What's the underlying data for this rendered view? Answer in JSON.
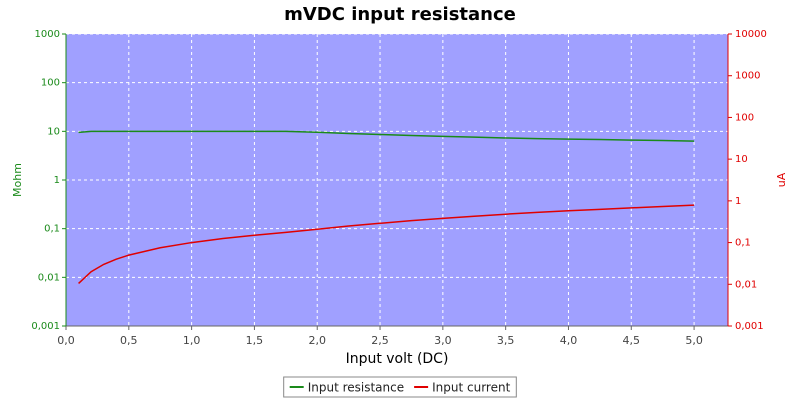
{
  "chart_data": {
    "type": "line",
    "title": "mVDC input resistance",
    "x_label": "Input volt (DC)",
    "y_label": "Mohm",
    "y2_label": "uA",
    "x": [
      0.1,
      0.2,
      0.3,
      0.4,
      0.5,
      0.75,
      1.0,
      1.25,
      1.5,
      1.75,
      2.0,
      2.25,
      2.5,
      2.75,
      3.0,
      3.25,
      3.5,
      3.75,
      4.0,
      4.25,
      4.5,
      4.75,
      5.0
    ],
    "series": [
      {
        "name": "Input resistance",
        "color": "#1a8a1a",
        "axis": "y",
        "values": [
          9.5,
          10,
          10,
          10,
          10,
          10,
          10,
          10,
          10,
          10,
          9.6,
          9.0,
          8.6,
          8.2,
          7.9,
          7.6,
          7.3,
          7.1,
          6.9,
          6.8,
          6.6,
          6.5,
          6.3
        ]
      },
      {
        "name": "Input current",
        "color": "#e00000",
        "axis": "y2",
        "values": [
          0.0105,
          0.02,
          0.03,
          0.04,
          0.05,
          0.075,
          0.1,
          0.125,
          0.15,
          0.175,
          0.208,
          0.25,
          0.29,
          0.335,
          0.38,
          0.428,
          0.479,
          0.528,
          0.58,
          0.625,
          0.68,
          0.73,
          0.79
        ]
      }
    ],
    "xlim": [
      0,
      5.27
    ],
    "xticks": [
      {
        "value": 0,
        "label": "0,0"
      },
      {
        "value": 0.5,
        "label": "0,5"
      },
      {
        "value": 1,
        "label": "1,0"
      },
      {
        "value": 1.5,
        "label": "1,5"
      },
      {
        "value": 2,
        "label": "2,0"
      },
      {
        "value": 2.5,
        "label": "2,5"
      },
      {
        "value": 3,
        "label": "3,0"
      },
      {
        "value": 3.5,
        "label": "3,5"
      },
      {
        "value": 4,
        "label": "4,0"
      },
      {
        "value": 4.5,
        "label": "4,5"
      },
      {
        "value": 5,
        "label": "5,0"
      }
    ],
    "ylim": [
      0.001,
      1000
    ],
    "yscale": "log",
    "yticks": [
      {
        "value": 0.001,
        "label": "0,001"
      },
      {
        "value": 0.01,
        "label": "0,01"
      },
      {
        "value": 0.1,
        "label": "0,1"
      },
      1,
      10,
      100,
      1000
    ],
    "y2lim": [
      0.001,
      10000
    ],
    "y2scale": "log",
    "y2ticks": [
      {
        "value": 0.001,
        "label": "0,001"
      },
      {
        "value": 0.01,
        "label": "0,01"
      },
      {
        "value": 0.1,
        "label": "0,1"
      },
      1,
      10,
      100,
      1000,
      10000
    ],
    "grid": true,
    "legend": "bottom",
    "y_color": "#1a8a1a",
    "y2_color": "#e00000",
    "background": "#a0a0ff"
  }
}
